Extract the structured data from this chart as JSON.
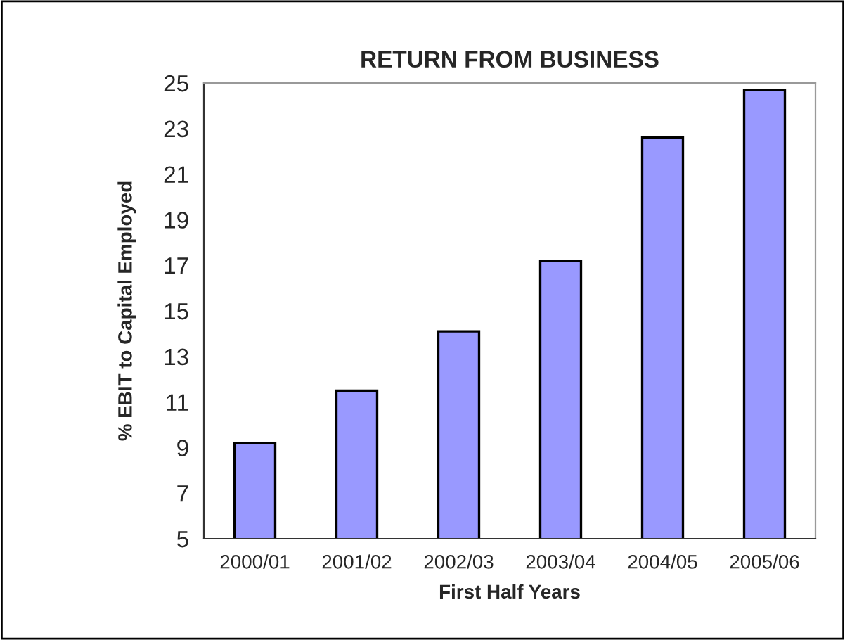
{
  "chart_data": {
    "type": "bar",
    "title": "RETURN FROM BUSINESS",
    "xlabel": "First Half Years",
    "ylabel": "% EBIT to Capital Employed",
    "categories": [
      "2000/01",
      "2001/02",
      "2002/03",
      "2003/04",
      "2004/05",
      "2005/06"
    ],
    "values": [
      9.2,
      11.5,
      14.1,
      17.2,
      22.6,
      24.7
    ],
    "color": "#9999ff",
    "ylim": [
      5,
      25
    ],
    "yticks": [
      5,
      7,
      9,
      11,
      13,
      15,
      17,
      19,
      21,
      23,
      25
    ],
    "grid": false,
    "legend": false
  }
}
